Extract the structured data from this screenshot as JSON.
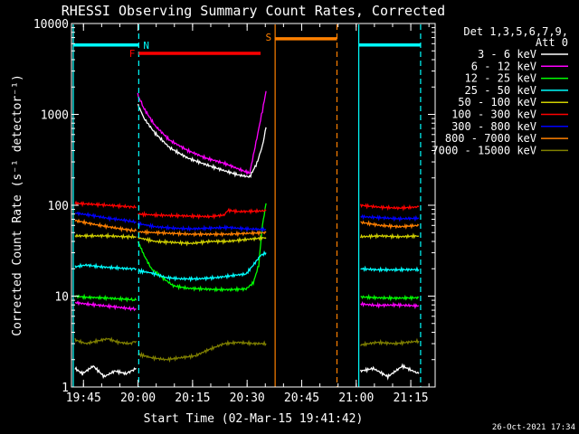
{
  "chart_data": {
    "type": "line",
    "title": "RHESSI Observing Summary Count Rates, Corrected",
    "xlabel": "Start Time (02-Mar-15 19:41:42)",
    "ylabel": "Corrected Count Rate (s⁻¹ detector⁻¹)",
    "yscale": "log",
    "ylim": [
      1,
      10000
    ],
    "xlim_minutes_after_1941": [
      0,
      100
    ],
    "x_ticks": [
      "19:45",
      "20:00",
      "20:15",
      "20:30",
      "20:45",
      "21:00",
      "21:15"
    ],
    "y_ticks": [
      "1",
      "10",
      "100",
      "1000",
      "10000"
    ],
    "footer_date": "26-Oct-2021 17:34",
    "legend": {
      "header": [
        "Det 1,3,5,6,7,9,",
        "Att 0"
      ],
      "placement": "right",
      "entries": [
        {
          "label": "3 - 6 keV",
          "color": "#ffffff"
        },
        {
          "label": "6 - 12 keV",
          "color": "#ff00ff"
        },
        {
          "label": "12 - 25 keV",
          "color": "#00ff00"
        },
        {
          "label": "25 - 50 keV",
          "color": "#00ffff"
        },
        {
          "label": "50 - 100 keV",
          "color": "#d2d200"
        },
        {
          "label": "100 - 300 keV",
          "color": "#ff0000"
        },
        {
          "label": "300 - 800 keV",
          "color": "#0000ff"
        },
        {
          "label": "800 - 7000 keV",
          "color": "#ff8000"
        },
        {
          "label": "7000 - 15000 keV",
          "color": "#808000"
        }
      ]
    },
    "flag_bars": [
      {
        "label": "",
        "color": "#00ffff",
        "y": 5800,
        "x_start": 0.5,
        "x_end": 18.5
      },
      {
        "label": "",
        "color": "#00ffff",
        "y": 5800,
        "x_start": 79,
        "x_end": 96
      },
      {
        "label": "N",
        "color": "#00ffff",
        "y": null,
        "x_start": 18.5,
        "x_end": 18.5
      },
      {
        "label": "F",
        "color": "#ff0000",
        "y": 4700,
        "x_start": 18.5,
        "x_end": 52
      },
      {
        "label": "S",
        "color": "#ff8000",
        "y": 6800,
        "x_start": 56,
        "x_end": 73
      }
    ],
    "interval_lines": [
      {
        "color": "#00ffff",
        "x": 0.5,
        "style": "solid"
      },
      {
        "color": "#00ffff",
        "x": 18.5,
        "style": "dashed"
      },
      {
        "color": "#00ffff",
        "x": 79,
        "style": "solid"
      },
      {
        "color": "#00ffff",
        "x": 96,
        "style": "dashed"
      },
      {
        "color": "#ff8000",
        "x": 56,
        "style": "solid"
      },
      {
        "color": "#ff8000",
        "x": 73,
        "style": "dashed"
      }
    ],
    "series": [
      {
        "name": "3 - 6 keV",
        "color": "#ffffff",
        "segments": [
          {
            "x": [
              1,
              3,
              6,
              9,
              12,
              15,
              17.8
            ],
            "y": [
              1.6,
              1.4,
              1.7,
              1.3,
              1.5,
              1.4,
              1.6
            ]
          },
          {
            "x": [
              18.3,
              20,
              23,
              27,
              32,
              37,
              42,
              46,
              49,
              51,
              52.5,
              53.5
            ],
            "y": [
              1280,
              900,
              620,
              430,
              330,
              280,
              240,
              215,
              205,
              290,
              450,
              720
            ]
          },
          {
            "x": [
              79.5,
              83,
              87,
              91,
              95.5
            ],
            "y": [
              1.5,
              1.6,
              1.3,
              1.7,
              1.4
            ]
          }
        ]
      },
      {
        "name": "6 - 12 keV",
        "color": "#ff00ff",
        "segments": [
          {
            "x": [
              1,
              4,
              8,
              12,
              16,
              17.8
            ],
            "y": [
              8.5,
              8.2,
              7.9,
              7.6,
              7.3,
              7.2
            ]
          },
          {
            "x": [
              18.2,
              20,
              23,
              27,
              32,
              37,
              42,
              46,
              49,
              51,
              52.5,
              53.5
            ],
            "y": [
              1650,
              1150,
              750,
              520,
              400,
              330,
              290,
              250,
              225,
              550,
              1100,
              1800
            ]
          },
          {
            "x": [
              79.5,
              84,
              89,
              95.5
            ],
            "y": [
              8.2,
              7.9,
              8.0,
              7.8
            ]
          }
        ]
      },
      {
        "name": "12 - 25 keV",
        "color": "#00ff00",
        "segments": [
          {
            "x": [
              1,
              4,
              8,
              12,
              16,
              17.8
            ],
            "y": [
              10,
              9.7,
              9.6,
              9.4,
              9.2,
              9.0
            ]
          },
          {
            "x": [
              18.3,
              20,
              22,
              25,
              28,
              32,
              36,
              40,
              44,
              48,
              50,
              51.5,
              52.5,
              53.5
            ],
            "y": [
              40,
              28,
              20,
              16,
              13,
              12.2,
              12.0,
              11.8,
              11.8,
              12,
              14,
              22,
              60,
              105
            ]
          },
          {
            "x": [
              79.5,
              84,
              89,
              95.5
            ],
            "y": [
              9.8,
              9.6,
              9.5,
              9.6
            ]
          }
        ]
      },
      {
        "name": "25 - 50 keV",
        "color": "#00ffff",
        "segments": [
          {
            "x": [
              1,
              4,
              8,
              12,
              16,
              17.8
            ],
            "y": [
              21,
              22,
              21,
              20.5,
              20,
              20
            ]
          },
          {
            "x": [
              18.3,
              22,
              26,
              30,
              35,
              40,
              45,
              48,
              50,
              52,
              53.5
            ],
            "y": [
              19,
              18,
              16,
              15.5,
              15.5,
              16,
              17,
              17.5,
              22,
              28,
              30
            ]
          },
          {
            "x": [
              79.5,
              84,
              89,
              95.5
            ],
            "y": [
              20,
              19.5,
              19.5,
              19.6
            ]
          }
        ]
      },
      {
        "name": "50 - 100 keV",
        "color": "#d2d200",
        "segments": [
          {
            "x": [
              1,
              5,
              10,
              15,
              17.8
            ],
            "y": [
              46,
              46,
              46,
              45,
              45
            ]
          },
          {
            "x": [
              18.3,
              23,
              28,
              33,
              38,
              43,
              48,
              53.5
            ],
            "y": [
              44,
              40,
              39,
              38,
              40,
              40,
              42,
              44
            ]
          },
          {
            "x": [
              79.5,
              85,
              90,
              95.5
            ],
            "y": [
              45,
              46,
              45,
              46
            ]
          }
        ]
      },
      {
        "name": "100 - 300 keV",
        "color": "#ff0000",
        "segments": [
          {
            "x": [
              1,
              5,
              10,
              15,
              17.8
            ],
            "y": [
              105,
              103,
              100,
              97,
              95
            ]
          },
          {
            "x": [
              18.3,
              23,
              28,
              33,
              38,
              42,
              43,
              46,
              50,
              53.5
            ],
            "y": [
              80,
              78,
              77,
              76,
              75,
              78,
              88,
              85,
              86,
              87
            ]
          },
          {
            "x": [
              79.5,
              85,
              90,
              95.5
            ],
            "y": [
              100,
              95,
              93,
              96
            ]
          }
        ]
      },
      {
        "name": "300 - 800 keV",
        "color": "#0000ff",
        "segments": [
          {
            "x": [
              1,
              5,
              10,
              15,
              17.8
            ],
            "y": [
              82,
              78,
              72,
              68,
              65
            ]
          },
          {
            "x": [
              18.3,
              23,
              28,
              33,
              38,
              43,
              48,
              53.5
            ],
            "y": [
              63,
              58,
              56,
              55,
              56,
              57,
              55,
              54
            ]
          },
          {
            "x": [
              79.5,
              85,
              90,
              95.5
            ],
            "y": [
              75,
              73,
              71,
              72
            ]
          }
        ]
      },
      {
        "name": "800 - 7000 keV",
        "color": "#ff8000",
        "segments": [
          {
            "x": [
              1,
              5,
              10,
              15,
              17.8
            ],
            "y": [
              68,
              63,
              58,
              54,
              52
            ]
          },
          {
            "x": [
              18.3,
              23,
              28,
              33,
              38,
              43,
              48,
              53.5
            ],
            "y": [
              51,
              50,
              49,
              48,
              48,
              48,
              49,
              50
            ]
          },
          {
            "x": [
              79.5,
              85,
              90,
              95.5
            ],
            "y": [
              65,
              60,
              58,
              60
            ]
          }
        ]
      },
      {
        "name": "7000 - 15000 keV",
        "color": "#808000",
        "segments": [
          {
            "x": [
              1,
              4,
              7,
              10,
              13,
              16,
              17.8
            ],
            "y": [
              3.3,
              3.0,
              3.2,
              3.4,
              3.1,
              3.0,
              3.2
            ]
          },
          {
            "x": [
              18.3,
              22,
              26,
              30,
              34,
              38,
              42,
              46,
              50,
              53.5
            ],
            "y": [
              2.3,
              2.1,
              2.0,
              2.1,
              2.2,
              2.6,
              3.0,
              3.1,
              3.0,
              3.0
            ]
          },
          {
            "x": [
              79.5,
              84,
              89,
              95.5
            ],
            "y": [
              2.9,
              3.1,
              3.0,
              3.2
            ]
          }
        ]
      }
    ]
  }
}
